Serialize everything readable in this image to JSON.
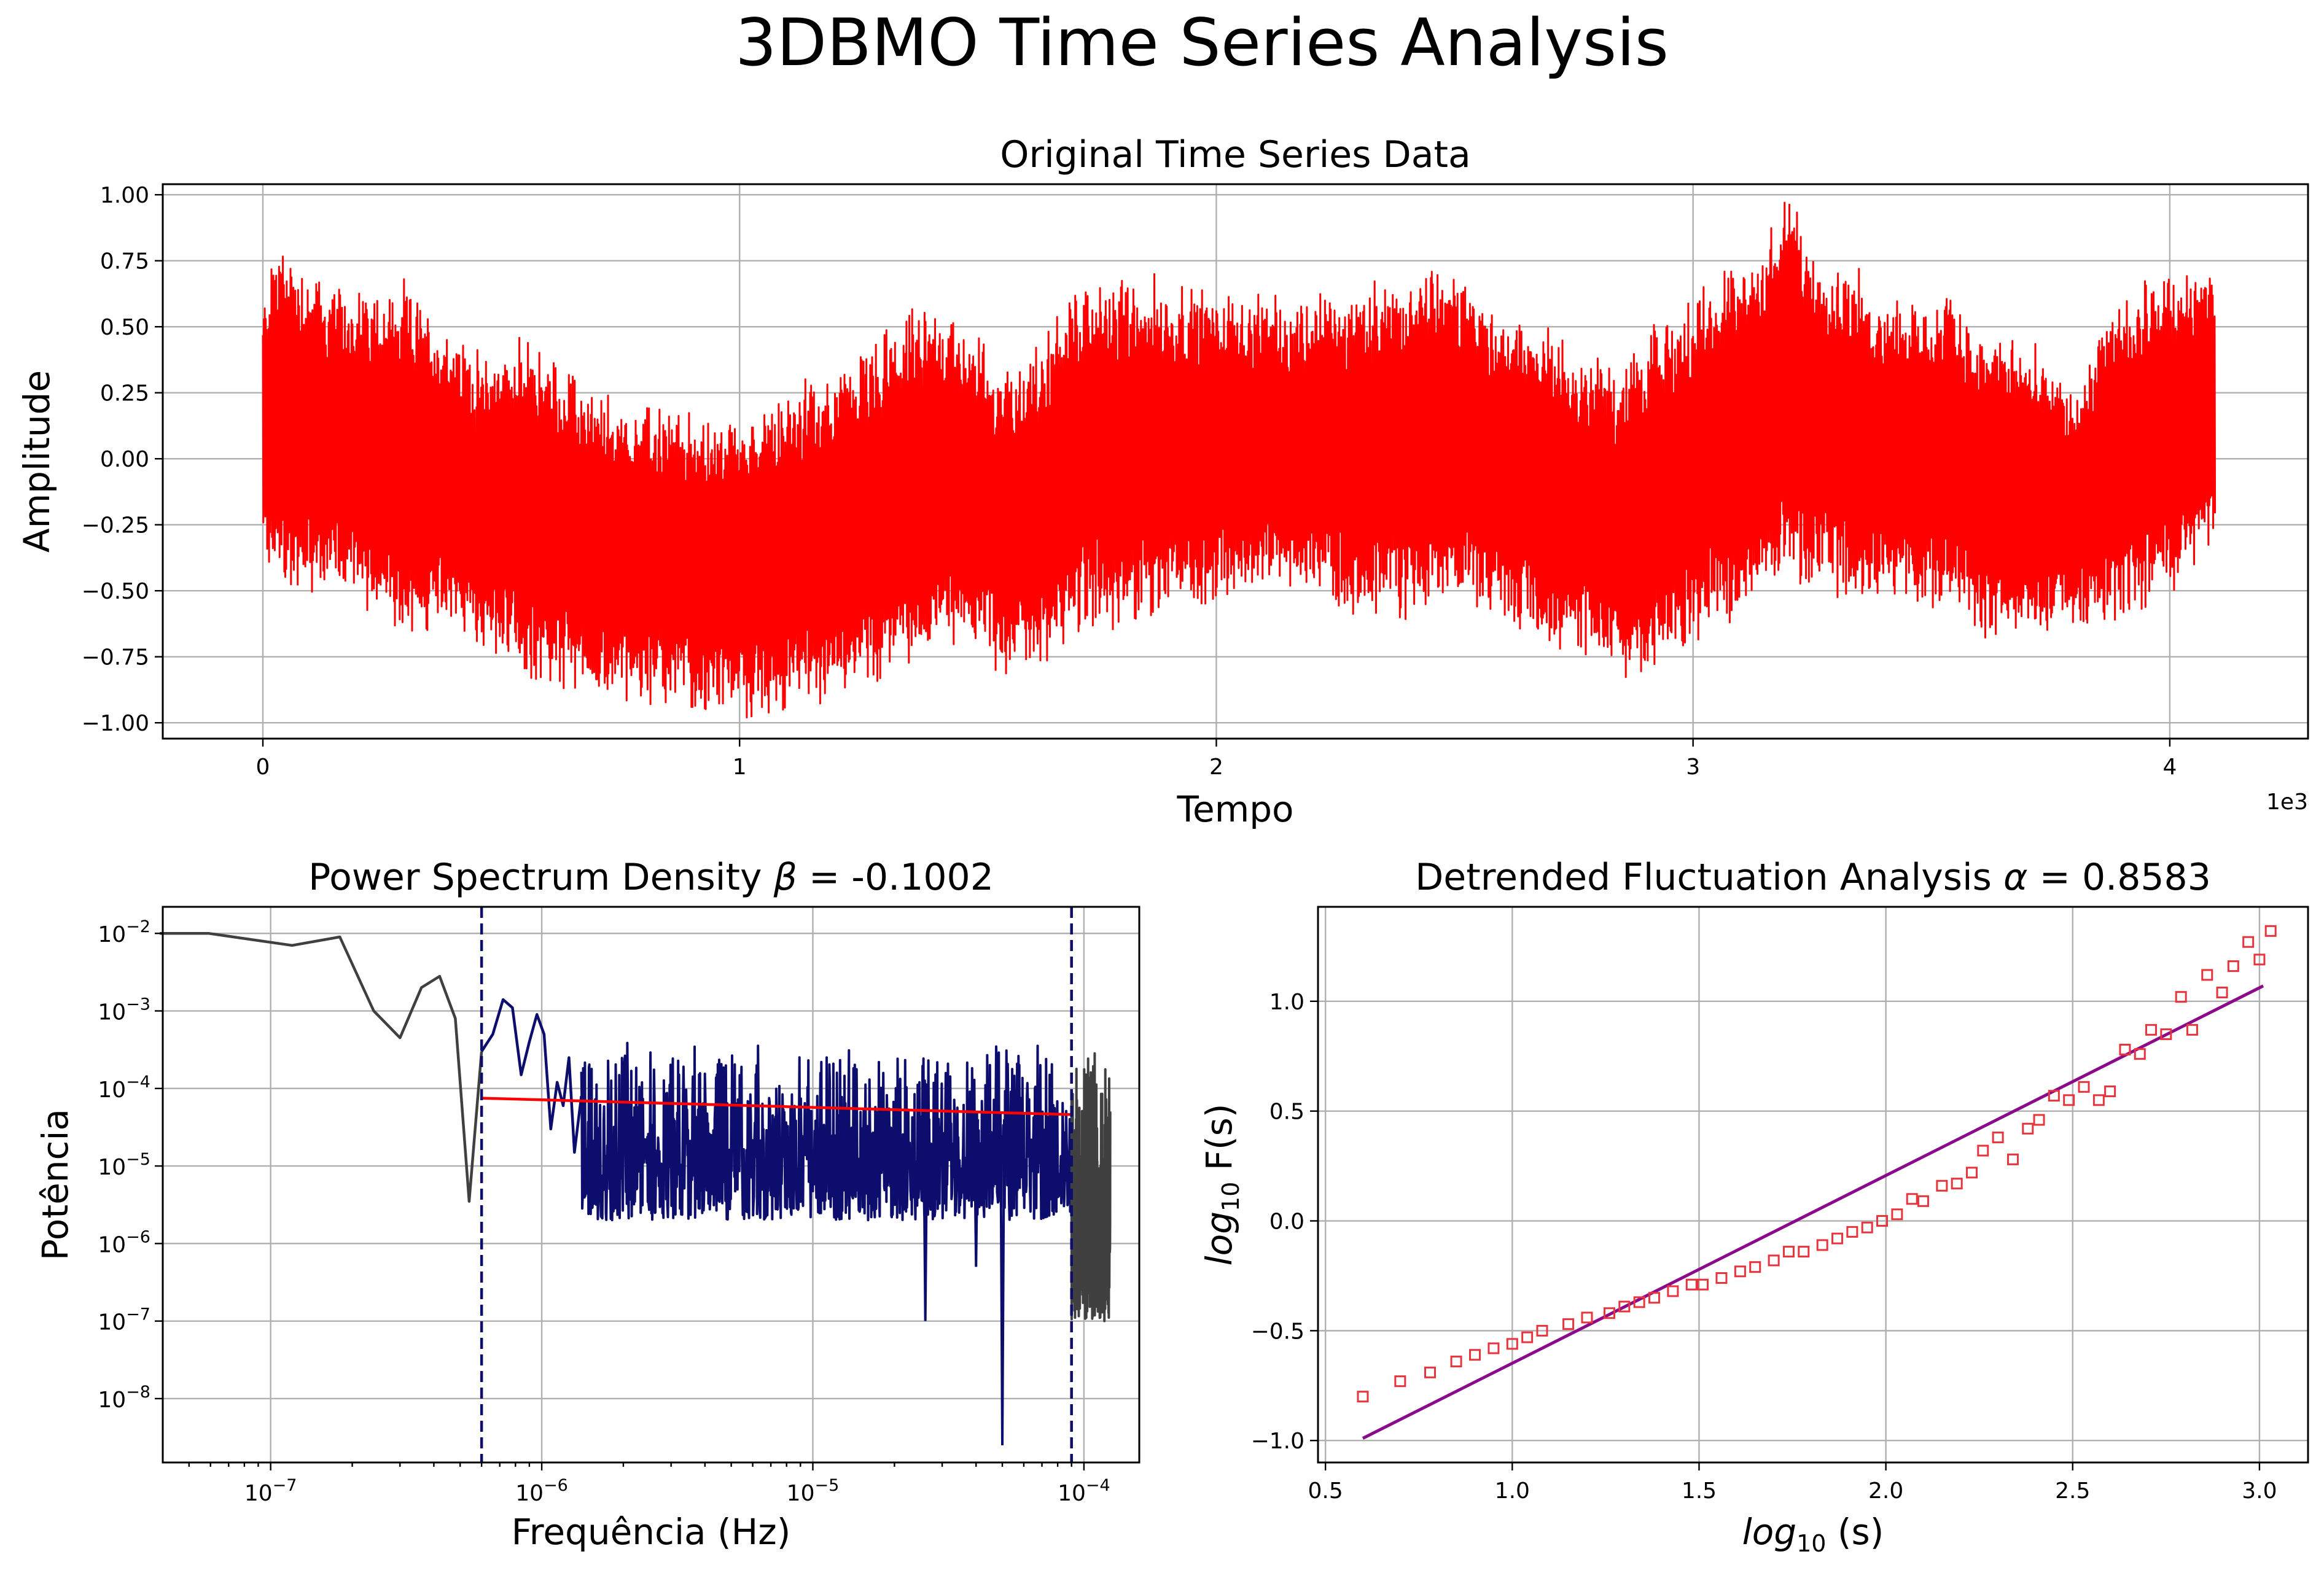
{
  "figure": {
    "title": "3DBMO Time Series Analysis"
  },
  "colors": {
    "series": "#ff0000",
    "psd_full": "#404040",
    "psd_fit_range": "#0d0d6e",
    "fit_line": "#ff0000",
    "cutoff": "#0d0d6e",
    "dfa_markers": "#e8343c",
    "dfa_fit": "#8b0a8b",
    "grid": "#b0b0b0"
  },
  "chart_data": [
    {
      "id": "time_series",
      "type": "line",
      "title": "Original Time Series Data",
      "xlabel": "Tempo",
      "ylabel": "Amplitude",
      "x_multiplier_label": "1e3",
      "xlim": [
        -210,
        4290
      ],
      "ylim": [
        -1.06,
        1.04
      ],
      "xticks": [
        0,
        1000,
        2000,
        3000,
        4000
      ],
      "xtick_labels": [
        "0",
        "1",
        "2",
        "3",
        "4"
      ],
      "yticks": [
        1.0,
        0.75,
        0.5,
        0.25,
        0.0,
        -0.25,
        -0.5,
        -0.75,
        -1.0
      ],
      "ytick_labels": [
        "1.00",
        "0.75",
        "0.50",
        "0.25",
        "0.00",
        "−0.25",
        "−0.50",
        "−0.75",
        "−1.00"
      ],
      "grid": true,
      "series_description": "dense oscillating signal, 4096 samples",
      "n_samples": 4096,
      "envelope_x": [
        0,
        25,
        150,
        300,
        450,
        560,
        700,
        850,
        930,
        1000,
        1100,
        1250,
        1400,
        1480,
        1560,
        1630,
        1700,
        1800,
        1900,
        2000,
        2100,
        2300,
        2500,
        2600,
        2700,
        2800,
        2850,
        2950,
        3050,
        3150,
        3200,
        3300,
        3450,
        3550,
        3600,
        3700,
        3800,
        3900,
        4000,
        4095
      ],
      "envelope_upper": [
        0.55,
        0.8,
        0.6,
        0.6,
        0.35,
        0.4,
        0.2,
        0.15,
        0.1,
        0.1,
        0.2,
        0.35,
        0.55,
        0.45,
        0.3,
        0.38,
        0.6,
        0.65,
        0.62,
        0.6,
        0.55,
        0.6,
        0.68,
        0.5,
        0.45,
        0.35,
        0.28,
        0.5,
        0.65,
        0.8,
        0.93,
        0.7,
        0.55,
        0.58,
        0.45,
        0.4,
        0.2,
        0.6,
        0.68,
        0.65
      ],
      "envelope_lower": [
        -0.25,
        -0.45,
        -0.45,
        -0.6,
        -0.65,
        -0.8,
        -0.85,
        -0.88,
        -0.92,
        -0.95,
        -0.9,
        -0.8,
        -0.7,
        -0.65,
        -0.8,
        -0.75,
        -0.6,
        -0.58,
        -0.55,
        -0.5,
        -0.45,
        -0.55,
        -0.52,
        -0.55,
        -0.68,
        -0.72,
        -0.8,
        -0.72,
        -0.6,
        -0.5,
        -0.42,
        -0.48,
        -0.52,
        -0.5,
        -0.65,
        -0.62,
        -0.6,
        -0.55,
        -0.45,
        -0.3
      ]
    },
    {
      "id": "psd",
      "type": "line",
      "title_prefix": "Power Spectrum Density ",
      "title_symbol": "β",
      "title_value": " = -0.1002",
      "xlabel": "Frequência (Hz)",
      "ylabel": "Potência",
      "xscale": "log",
      "yscale": "log",
      "xlim": [
        4e-08,
        0.00016
      ],
      "ylim": [
        1.5e-09,
        0.022
      ],
      "xticks": [
        1e-07,
        1e-06,
        1e-05,
        0.0001
      ],
      "xtick_base": [
        "10",
        "10",
        "10",
        "10"
      ],
      "xtick_exp": [
        "−7",
        "−6",
        "−5",
        "−4"
      ],
      "yticks": [
        0.01,
        0.001,
        0.0001,
        1e-05,
        1e-06,
        1e-07,
        1e-08
      ],
      "ytick_base": [
        "10",
        "10",
        "10",
        "10",
        "10",
        "10",
        "10"
      ],
      "ytick_exp": [
        "−2",
        "−3",
        "−4",
        "−5",
        "−6",
        "−7",
        "−8"
      ],
      "grid": true,
      "fit_range_hz": [
        6e-07,
        9e-05
      ],
      "fit_line": {
        "x": [
          6e-07,
          9e-05
        ],
        "y": [
          7.5e-05,
          4.6e-05
        ]
      },
      "low_freq_points": [
        [
          3.9e-08,
          0.01
        ],
        [
          5.9e-08,
          0.01
        ],
        [
          1.2e-07,
          0.007
        ],
        [
          1.8e-07,
          0.009
        ],
        [
          2.4e-07,
          0.001
        ],
        [
          3e-07,
          0.00045
        ],
        [
          3.6e-07,
          0.002
        ],
        [
          4.2e-07,
          0.0028
        ],
        [
          4.8e-07,
          0.0008
        ],
        [
          5.4e-07,
          3.5e-06
        ],
        [
          6e-07,
          0.0003
        ]
      ],
      "mid_freq_points": [
        [
          6e-07,
          0.0003
        ],
        [
          6.6e-07,
          0.0005
        ],
        [
          7.2e-07,
          0.0014
        ],
        [
          7.8e-07,
          0.0011
        ],
        [
          8.4e-07,
          0.00015
        ],
        [
          9e-07,
          0.0004
        ],
        [
          9.6e-07,
          0.0009
        ],
        [
          1.02e-06,
          0.0005
        ],
        [
          1.08e-06,
          3e-05
        ],
        [
          1.14e-06,
          0.00012
        ],
        [
          1.2e-06,
          6e-05
        ],
        [
          1.26e-06,
          0.00025
        ],
        [
          1.32e-06,
          1.5e-05
        ],
        [
          1.4e-06,
          8e-05
        ]
      ],
      "noise_band": {
        "x_start": 1.4e-06,
        "x_end": 9e-05,
        "upper": 0.0004,
        "lower": 2e-06,
        "deep_dips": [
          [
            2.6e-05,
            1e-07
          ],
          [
            5e-05,
            2.5e-09
          ],
          [
            4e-05,
            5e-07
          ]
        ]
      },
      "tail_band": {
        "x_start": 9e-05,
        "x_end": 0.000125,
        "upper": 0.0004,
        "lower": 1e-07
      }
    },
    {
      "id": "dfa",
      "type": "scatter",
      "title_prefix": "Detrended Fluctuation Analysis ",
      "title_symbol": "α",
      "title_value": " = 0.8583",
      "xlabel_italic": "log",
      "xlabel_sub": "10",
      "xlabel_rest": " (s)",
      "ylabel_italic": "log",
      "ylabel_sub": "10",
      "ylabel_rest": " F(s)",
      "xlim": [
        0.48,
        3.13
      ],
      "ylim": [
        -1.1,
        1.43
      ],
      "xticks": [
        0.5,
        1.0,
        1.5,
        2.0,
        2.5,
        3.0
      ],
      "xtick_labels": [
        "0.5",
        "1.0",
        "1.5",
        "2.0",
        "2.5",
        "3.0"
      ],
      "yticks": [
        1.0,
        0.5,
        0.0,
        -0.5,
        -1.0
      ],
      "ytick_labels": [
        "1.0",
        "0.5",
        "0.0",
        "−0.5",
        "−1.0"
      ],
      "grid": true,
      "fit_line": {
        "x": [
          0.6,
          3.01
        ],
        "y": [
          -0.99,
          1.07
        ]
      },
      "points": [
        [
          0.6,
          -0.8
        ],
        [
          0.7,
          -0.73
        ],
        [
          0.78,
          -0.69
        ],
        [
          0.85,
          -0.64
        ],
        [
          0.9,
          -0.61
        ],
        [
          0.95,
          -0.58
        ],
        [
          1.0,
          -0.56
        ],
        [
          1.04,
          -0.53
        ],
        [
          1.08,
          -0.5
        ],
        [
          1.15,
          -0.47
        ],
        [
          1.2,
          -0.44
        ],
        [
          1.26,
          -0.42
        ],
        [
          1.3,
          -0.39
        ],
        [
          1.34,
          -0.37
        ],
        [
          1.38,
          -0.35
        ],
        [
          1.43,
          -0.32
        ],
        [
          1.48,
          -0.29
        ],
        [
          1.51,
          -0.29
        ],
        [
          1.56,
          -0.26
        ],
        [
          1.61,
          -0.23
        ],
        [
          1.65,
          -0.21
        ],
        [
          1.7,
          -0.18
        ],
        [
          1.74,
          -0.14
        ],
        [
          1.78,
          -0.14
        ],
        [
          1.83,
          -0.11
        ],
        [
          1.87,
          -0.08
        ],
        [
          1.91,
          -0.05
        ],
        [
          1.95,
          -0.03
        ],
        [
          1.99,
          0.0
        ],
        [
          2.03,
          0.03
        ],
        [
          2.07,
          0.1
        ],
        [
          2.1,
          0.09
        ],
        [
          2.15,
          0.16
        ],
        [
          2.19,
          0.17
        ],
        [
          2.23,
          0.22
        ],
        [
          2.26,
          0.32
        ],
        [
          2.3,
          0.38
        ],
        [
          2.34,
          0.28
        ],
        [
          2.38,
          0.42
        ],
        [
          2.41,
          0.46
        ],
        [
          2.45,
          0.57
        ],
        [
          2.49,
          0.55
        ],
        [
          2.53,
          0.61
        ],
        [
          2.57,
          0.55
        ],
        [
          2.6,
          0.59
        ],
        [
          2.64,
          0.78
        ],
        [
          2.68,
          0.76
        ],
        [
          2.71,
          0.87
        ],
        [
          2.75,
          0.85
        ],
        [
          2.79,
          1.02
        ],
        [
          2.82,
          0.87
        ],
        [
          2.86,
          1.12
        ],
        [
          2.9,
          1.04
        ],
        [
          2.93,
          1.16
        ],
        [
          2.97,
          1.27
        ],
        [
          3.0,
          1.19
        ],
        [
          3.03,
          1.32
        ]
      ]
    }
  ]
}
